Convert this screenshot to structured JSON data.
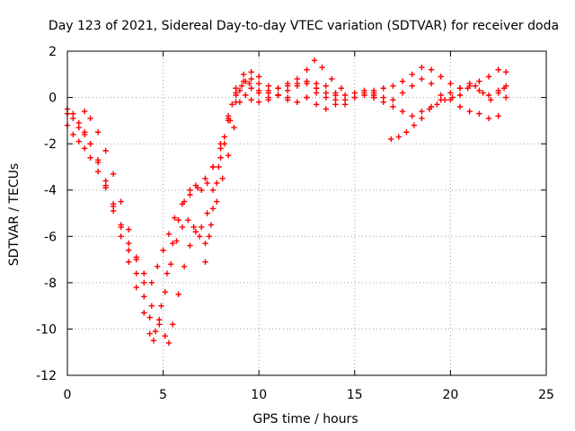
{
  "chart_data": {
    "type": "scatter",
    "title": "Day 123 of 2021, Sidereal Day-to-day VTEC variation (SDTVAR) for receiver doda",
    "xlabel": "GPS time / hours",
    "ylabel": "SDTVAR / TECUs",
    "xlim": [
      0,
      25
    ],
    "ylim": [
      -12,
      2
    ],
    "xticks": [
      0,
      5,
      10,
      15,
      20,
      25
    ],
    "yticks": [
      -12,
      -10,
      -8,
      -6,
      -4,
      -2,
      0,
      2
    ],
    "grid": true,
    "marker": "plus",
    "color": "#ff0000",
    "series": [
      {
        "x": [
          0.0,
          0.3,
          0.6,
          0.9,
          1.2,
          1.6,
          2.0,
          2.4,
          2.8,
          3.2,
          3.6,
          4.0,
          4.4,
          4.7,
          5.0,
          5.3,
          5.6,
          6.0,
          6.4,
          6.8,
          7.2,
          7.6,
          8.0,
          8.4,
          8.8,
          9.2,
          9.6,
          10.0,
          10.5,
          11.0,
          11.5,
          12.0,
          12.5,
          13.0,
          13.5,
          14.0,
          14.5,
          15.0,
          15.5,
          16.0
        ],
        "y": [
          -1.2,
          -1.6,
          -1.9,
          -2.2,
          -2.6,
          -3.2,
          -3.9,
          -4.7,
          -5.5,
          -6.3,
          -7.0,
          -7.6,
          -8.0,
          -7.3,
          -6.6,
          -5.9,
          -5.2,
          -4.6,
          -4.2,
          -3.9,
          -3.5,
          -3.0,
          -2.2,
          -1.0,
          0.2,
          0.7,
          0.4,
          0.3,
          0.2,
          0.4,
          0.5,
          0.6,
          0.7,
          0.6,
          0.5,
          0.2,
          0.1,
          0.2,
          0.3,
          0.2
        ]
      },
      {
        "x": [
          0.0,
          0.3,
          0.6,
          0.9,
          1.2,
          1.6,
          2.0,
          2.4,
          2.8,
          3.2,
          3.6,
          4.0,
          4.3,
          4.6,
          4.9,
          5.2,
          5.5,
          5.8,
          6.1,
          6.4,
          6.7,
          7.0,
          7.3,
          7.6,
          8.0,
          8.4,
          8.8,
          9.2,
          9.6,
          10.0,
          10.5,
          11.0,
          11.5,
          12.0,
          12.5,
          12.9,
          13.3,
          13.8,
          14.3
        ],
        "y": [
          -0.7,
          -0.9,
          -1.3,
          -1.6,
          -2.0,
          -2.7,
          -3.6,
          -4.6,
          -5.6,
          -6.6,
          -7.6,
          -8.6,
          -9.5,
          -10.1,
          -9.0,
          -7.6,
          -6.3,
          -5.3,
          -4.5,
          -4.0,
          -3.8,
          -4.0,
          -3.7,
          -3.0,
          -2.0,
          -0.8,
          0.4,
          1.0,
          0.8,
          0.6,
          0.3,
          0.4,
          0.6,
          0.8,
          1.2,
          1.6,
          1.3,
          0.8,
          0.4
        ]
      },
      {
        "x": [
          0.0,
          0.3,
          0.6,
          0.9,
          1.2,
          1.6,
          2.0,
          2.4,
          2.8,
          3.2,
          3.6,
          4.0,
          4.3,
          4.5,
          4.8,
          5.1,
          5.4,
          5.7,
          6.0,
          6.3,
          6.6,
          6.9,
          7.2,
          7.5,
          7.8,
          8.1,
          8.4,
          8.7,
          9.0,
          9.3,
          9.6,
          10.0,
          10.5,
          11.0,
          11.5,
          12.0,
          12.5,
          13.0,
          13.5,
          14.0
        ],
        "y": [
          -0.5,
          -0.7,
          -1.1,
          -1.5,
          -2.0,
          -2.8,
          -3.8,
          -4.9,
          -6.0,
          -7.1,
          -8.2,
          -9.3,
          -10.2,
          -10.5,
          -9.6,
          -8.4,
          -7.2,
          -6.2,
          -5.6,
          -5.3,
          -5.6,
          -6.0,
          -6.3,
          -5.5,
          -4.5,
          -3.5,
          -2.5,
          -1.3,
          -0.2,
          0.7,
          1.1,
          0.9,
          0.5,
          0.1,
          0.3,
          0.5,
          0.6,
          0.4,
          0.2,
          0.1
        ]
      },
      {
        "x": [
          0.9,
          1.2,
          1.6,
          2.0,
          2.4,
          2.8,
          3.2,
          3.6,
          4.0,
          4.4,
          4.8,
          5.1,
          5.3,
          5.5,
          5.8,
          6.1,
          6.4,
          6.7,
          7.0,
          7.3,
          7.6,
          7.9,
          8.2,
          8.5,
          8.8,
          9.1,
          9.5,
          10.0,
          10.5,
          11.0,
          11.5,
          12.0,
          12.5,
          13.0,
          13.5,
          14.0,
          14.5,
          15.0,
          15.5,
          16.0
        ],
        "y": [
          -0.6,
          -0.9,
          -1.5,
          -2.3,
          -3.3,
          -4.5,
          -5.7,
          -6.9,
          -8.0,
          -9.0,
          -9.8,
          -10.3,
          -10.6,
          -9.8,
          -8.5,
          -7.3,
          -6.4,
          -5.8,
          -5.6,
          -5.0,
          -4.0,
          -3.0,
          -2.0,
          -1.0,
          -0.2,
          0.5,
          0.6,
          0.2,
          -0.1,
          0.1,
          0.0,
          -0.2,
          0.0,
          0.2,
          0.0,
          -0.1,
          -0.3,
          0.0,
          0.2,
          0.0
        ]
      },
      {
        "x": [
          7.2,
          7.4,
          7.6,
          7.8,
          8.0,
          8.2,
          8.4,
          8.6,
          8.8,
          9.0,
          9.3,
          9.6,
          10.0,
          10.5,
          11.0,
          11.5,
          12.0,
          12.5,
          13.0,
          13.5,
          14.0,
          14.5,
          15.0,
          15.5,
          16.0,
          16.5,
          17.0,
          17.5,
          18.0,
          18.5,
          19.0,
          19.5,
          20.0,
          20.5,
          21.0,
          21.5,
          22.0,
          22.5,
          22.9
        ],
        "y": [
          -7.1,
          -6.0,
          -4.8,
          -3.7,
          -2.6,
          -1.7,
          -0.9,
          -0.3,
          0.1,
          0.3,
          0.1,
          -0.1,
          -0.2,
          0.0,
          0.1,
          -0.1,
          -0.2,
          0.0,
          -0.3,
          -0.5,
          -0.3,
          -0.1,
          0.0,
          0.1,
          0.0,
          0.0,
          -0.1,
          0.2,
          0.5,
          0.8,
          0.6,
          0.1,
          -0.1,
          -0.4,
          -0.6,
          -0.7,
          -0.9,
          -0.8,
          0.0
        ]
      },
      {
        "x": [
          16.0,
          16.5,
          17.0,
          17.5,
          18.0,
          18.5,
          19.0,
          19.5,
          20.0,
          20.5,
          21.0,
          21.5,
          22.0,
          22.5,
          22.9
        ],
        "y": [
          0.3,
          0.4,
          0.5,
          0.7,
          1.0,
          1.3,
          1.2,
          0.9,
          0.6,
          0.4,
          0.5,
          0.3,
          0.1,
          0.3,
          0.5
        ]
      },
      {
        "x": [
          16.0,
          16.5,
          17.0,
          17.5,
          18.0,
          18.5,
          19.0,
          19.5,
          20.0,
          20.5,
          21.0,
          21.5,
          22.0,
          22.5,
          22.9
        ],
        "y": [
          0.1,
          -0.2,
          -0.4,
          -0.6,
          -0.8,
          -0.6,
          -0.4,
          -0.1,
          0.2,
          0.4,
          0.6,
          0.7,
          0.9,
          1.2,
          1.1
        ]
      },
      {
        "x": [
          16.9,
          17.3,
          17.7,
          18.1,
          18.5,
          18.9,
          19.3,
          19.7,
          20.1,
          20.5,
          20.9,
          21.3,
          21.7,
          22.1,
          22.5,
          22.8
        ],
        "y": [
          -1.8,
          -1.7,
          -1.5,
          -1.2,
          -0.9,
          -0.5,
          -0.3,
          -0.1,
          0.0,
          0.1,
          0.4,
          0.5,
          0.2,
          -0.1,
          0.2,
          0.4
        ]
      }
    ]
  }
}
